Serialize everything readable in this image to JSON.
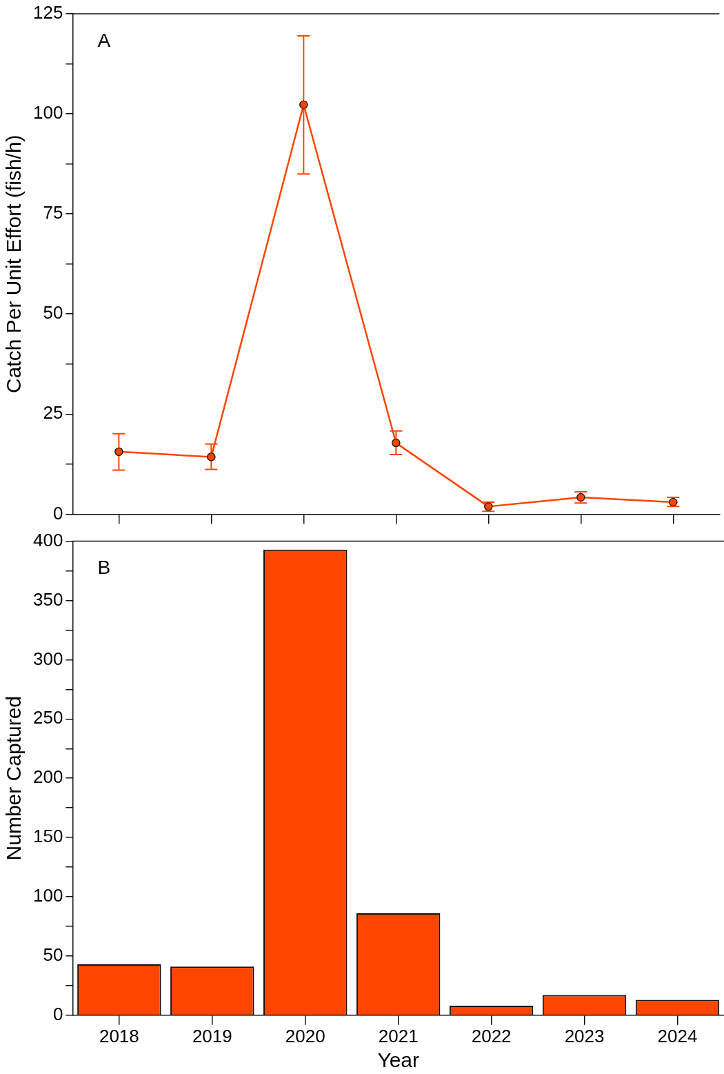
{
  "chart_data": [
    {
      "type": "line",
      "ylabel": "Catch Per Unit Effort (fish/h)",
      "annotations": [
        "A"
      ],
      "categories": [
        "2018",
        "2019",
        "2020",
        "2021",
        "2022",
        "2023",
        "2024"
      ],
      "color": "#ff4500",
      "marker": "circle",
      "tick_labels": "y",
      "values": [
        15.6,
        14.3,
        102.3,
        17.8,
        1.9,
        4.2,
        3.0
      ],
      "errors": [
        [
          11.0,
          20.1
        ],
        [
          11.2,
          17.5
        ],
        [
          85.0,
          119.5
        ],
        [
          14.9,
          20.8
        ],
        [
          0.7,
          3.0
        ],
        [
          2.8,
          5.6
        ],
        [
          1.9,
          4.2
        ]
      ],
      "ylim": [
        0,
        125
      ],
      "yticks": [
        0,
        {
          "value": 12.5,
          "label": null
        },
        25,
        {
          "value": 37.5,
          "label": null
        },
        50,
        {
          "value": 62.5,
          "label": null
        },
        75,
        {
          "value": 87.5,
          "label": null
        },
        100,
        {
          "value": 112.5,
          "label": null
        },
        125
      ]
    },
    {
      "type": "bar",
      "ylabel": "Number Captured",
      "xlabel": "Year",
      "annotations": [
        "B"
      ],
      "categories": [
        "2018",
        "2019",
        "2020",
        "2021",
        "2022",
        "2023",
        "2024"
      ],
      "color": "#ff4500",
      "values": [
        43,
        41,
        393,
        86,
        8,
        17,
        13
      ],
      "ylim": [
        0,
        400
      ],
      "yticks": [
        0,
        {
          "value": 25,
          "label": null
        },
        50,
        {
          "value": 75,
          "label": null
        },
        100,
        {
          "value": 125,
          "label": null
        },
        150,
        {
          "value": 175,
          "label": null
        },
        200,
        {
          "value": 225,
          "label": null
        },
        250,
        {
          "value": 275,
          "label": null
        },
        300,
        {
          "value": 325,
          "label": null
        },
        350,
        {
          "value": 375,
          "label": null
        },
        400
      ]
    }
  ]
}
